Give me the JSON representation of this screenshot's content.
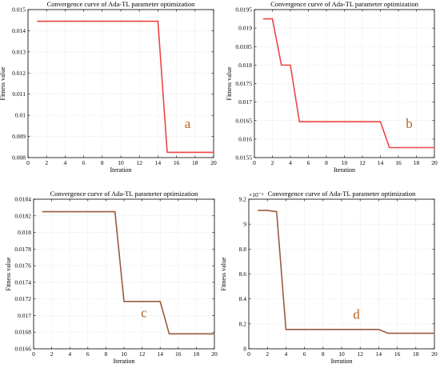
{
  "chart_data": [
    {
      "type": "line",
      "title": "Convergence curve of Ada-TL parameter optimization",
      "xlabel": "Iteration",
      "ylabel": "Fitness value",
      "xlim": [
        0,
        20
      ],
      "ylim": [
        0.008,
        0.015
      ],
      "xticks": [
        0,
        2,
        4,
        6,
        8,
        10,
        12,
        14,
        16,
        18,
        20
      ],
      "yticks": [
        0.008,
        0.009,
        0.01,
        0.011,
        0.012,
        0.013,
        0.014,
        0.015
      ],
      "ytick_labels": [
        "0.008",
        "0.009",
        "0.01",
        "0.011",
        "0.012",
        "0.013",
        "0.014",
        "0.015"
      ],
      "exponent_label": "",
      "grid": true,
      "panel_letter": "a",
      "line_color": "#ee4444",
      "x": [
        1,
        2,
        3,
        4,
        5,
        6,
        7,
        8,
        9,
        10,
        11,
        12,
        13,
        14,
        15,
        16,
        17,
        18,
        19,
        20
      ],
      "values": [
        0.01445,
        0.01445,
        0.01445,
        0.01445,
        0.01445,
        0.01445,
        0.01445,
        0.01445,
        0.01445,
        0.01445,
        0.01445,
        0.01445,
        0.01445,
        0.01445,
        0.00825,
        0.00825,
        0.00825,
        0.00825,
        0.00825,
        0.00825
      ]
    },
    {
      "type": "line",
      "title": "Convergence curve of Ada-TL parameter optimization",
      "xlabel": "Iteration",
      "ylabel": "Fitness value",
      "xlim": [
        0,
        20
      ],
      "ylim": [
        0.0155,
        0.0195
      ],
      "xticks": [
        0,
        2,
        4,
        6,
        8,
        10,
        12,
        14,
        16,
        18,
        20
      ],
      "yticks": [
        0.0155,
        0.016,
        0.0165,
        0.017,
        0.0175,
        0.018,
        0.0185,
        0.019,
        0.0195
      ],
      "ytick_labels": [
        "0.0155",
        "0.016",
        "0.0165",
        "0.017",
        "0.0175",
        "0.018",
        "0.0185",
        "0.019",
        "0.0195"
      ],
      "exponent_label": "",
      "grid": true,
      "panel_letter": "b",
      "line_color": "#ee4444",
      "x": [
        1,
        2,
        3,
        4,
        5,
        6,
        7,
        8,
        9,
        10,
        11,
        12,
        13,
        14,
        15,
        16,
        17,
        18,
        19,
        20
      ],
      "values": [
        0.01925,
        0.01925,
        0.018,
        0.018,
        0.01647,
        0.01647,
        0.01647,
        0.01647,
        0.01647,
        0.01647,
        0.01647,
        0.01647,
        0.01647,
        0.01647,
        0.01577,
        0.01577,
        0.01577,
        0.01577,
        0.01577,
        0.01577
      ]
    },
    {
      "type": "line",
      "title": "Convergence curve of Ada-TL parameter optimization",
      "xlabel": "Iteration",
      "ylabel": "Fitness value",
      "xlim": [
        0,
        20
      ],
      "ylim": [
        0.0166,
        0.0184
      ],
      "xticks": [
        0,
        2,
        4,
        6,
        8,
        10,
        12,
        14,
        16,
        18,
        20
      ],
      "yticks": [
        0.0166,
        0.0168,
        0.017,
        0.0172,
        0.0174,
        0.0176,
        0.0178,
        0.018,
        0.0182,
        0.0184
      ],
      "ytick_labels": [
        "0.0166",
        "0.0168",
        "0.017",
        "0.0172",
        "0.0174",
        "0.0176",
        "0.0178",
        "0.018",
        "0.0182",
        "0.0184"
      ],
      "exponent_label": "",
      "grid": true,
      "panel_letter": "c",
      "line_color": "#9b5a3c",
      "x": [
        1,
        2,
        3,
        4,
        5,
        6,
        7,
        8,
        9,
        10,
        11,
        12,
        13,
        14,
        15,
        16,
        17,
        18,
        19,
        20
      ],
      "values": [
        0.01825,
        0.01825,
        0.01825,
        0.01825,
        0.01825,
        0.01825,
        0.01825,
        0.01825,
        0.01825,
        0.01717,
        0.01717,
        0.01717,
        0.01717,
        0.01717,
        0.01678,
        0.01678,
        0.01678,
        0.01678,
        0.01678,
        0.01678
      ]
    },
    {
      "type": "line",
      "title": "Convergence curve of Ada-TL parameter optimization",
      "xlabel": "Iteration",
      "ylabel": "Fitness value",
      "xlim": [
        0,
        20
      ],
      "ylim": [
        8.0,
        9.2
      ],
      "xticks": [
        0,
        2,
        4,
        6,
        8,
        10,
        12,
        14,
        16,
        18,
        20
      ],
      "yticks": [
        8.0,
        8.2,
        8.4,
        8.6,
        8.8,
        9.0,
        9.2
      ],
      "ytick_labels": [
        "8",
        "8.2",
        "8.4",
        "8.6",
        "8.8",
        "9",
        "9.2"
      ],
      "exponent_label": "×10⁻³",
      "grid": true,
      "panel_letter": "d",
      "line_color": "#9b5a3c",
      "x": [
        1,
        2,
        3,
        4,
        5,
        6,
        7,
        8,
        9,
        10,
        11,
        12,
        13,
        14,
        15,
        16,
        17,
        18,
        19,
        20
      ],
      "values": [
        9.11,
        9.11,
        9.1,
        8.155,
        8.155,
        8.155,
        8.155,
        8.155,
        8.155,
        8.155,
        8.155,
        8.155,
        8.155,
        8.155,
        8.125,
        8.125,
        8.125,
        8.125,
        8.125,
        8.125
      ]
    }
  ]
}
